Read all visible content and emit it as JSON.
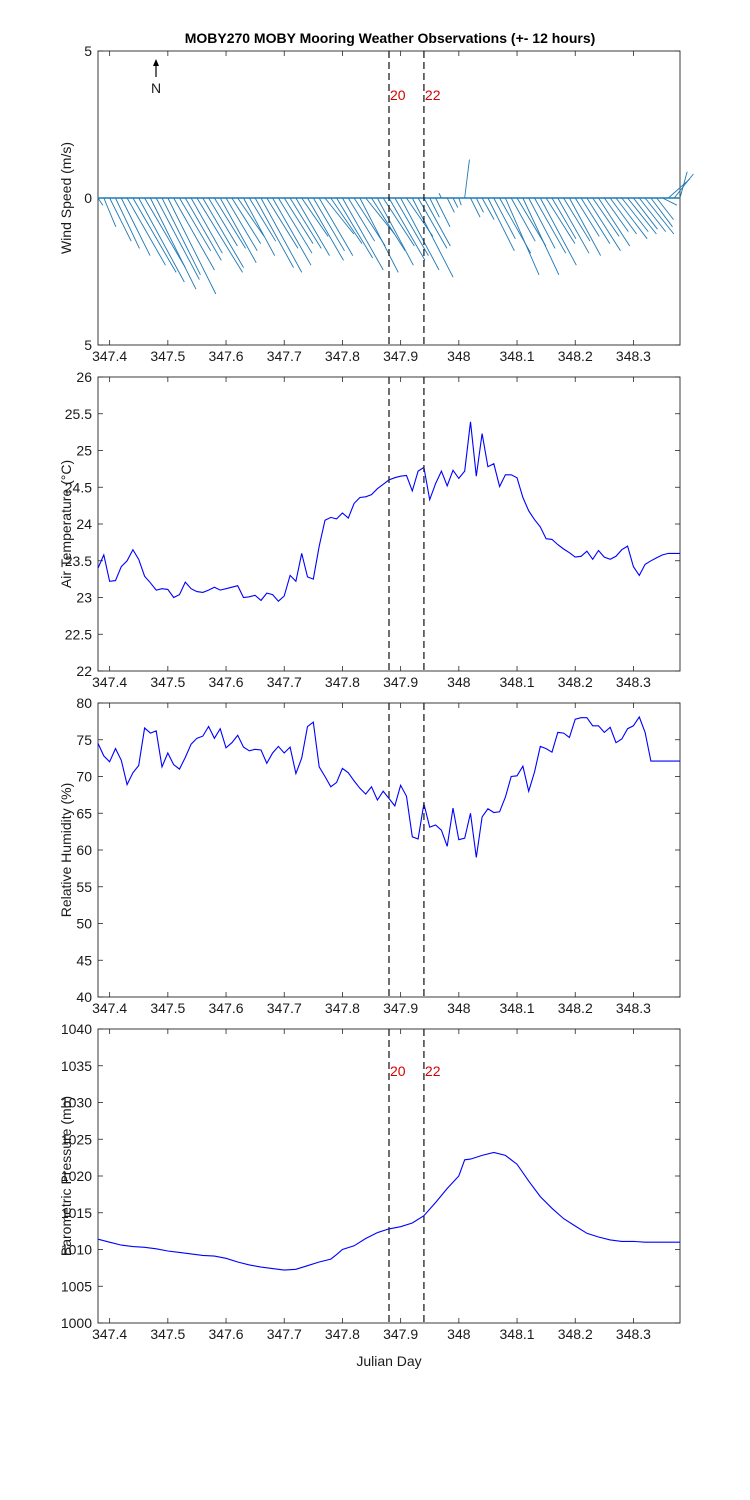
{
  "chart_data": [
    {
      "type": "quiver",
      "title": "MOBY270 MOBY Mooring Weather Observations (+- 12 hours)",
      "ylabel": "Wind Speed (m/s)",
      "xlabel": "",
      "xlim": [
        347.38,
        348.38
      ],
      "ylim": [
        -5,
        5
      ],
      "yticks": [
        5,
        0,
        5
      ],
      "xticks": [
        347.4,
        347.5,
        347.6,
        347.7,
        347.8,
        347.9,
        348,
        348.1,
        348.2,
        348.3
      ],
      "xtick_labels": [
        "347.4",
        "347.5",
        "347.6",
        "347.7",
        "347.8",
        "347.9",
        "348",
        "348.1",
        "348.2",
        "348.3"
      ],
      "north_label": "N",
      "color": "#1f78b4",
      "vlines": [
        {
          "x": 347.88,
          "label": "20"
        },
        {
          "x": 347.94,
          "label": "22"
        }
      ],
      "series": [
        {
          "x": [
            347.38,
            347.39,
            347.4,
            347.41,
            347.42,
            347.43,
            347.44,
            347.45,
            347.46,
            347.47,
            347.48,
            347.49,
            347.5,
            347.51,
            347.52,
            347.53,
            347.54,
            347.55,
            347.56,
            347.57,
            347.58,
            347.59,
            347.6,
            347.61,
            347.62,
            347.63,
            347.64,
            347.65,
            347.66,
            347.67,
            347.68,
            347.69,
            347.7,
            347.71,
            347.72,
            347.73,
            347.74,
            347.75,
            347.76,
            347.77,
            347.78,
            347.79,
            347.8,
            347.81,
            347.82,
            347.83,
            347.84,
            347.85,
            347.86,
            347.87,
            347.88,
            347.89,
            347.9,
            347.91,
            347.92,
            347.93,
            347.94,
            347.95,
            347.96,
            347.97,
            347.98,
            347.99,
            348.0,
            348.01,
            348.02,
            348.03,
            348.04,
            348.05,
            348.06,
            348.07,
            348.08,
            348.09,
            348.1,
            348.11,
            348.12,
            348.13,
            348.14,
            348.15,
            348.16,
            348.17,
            348.18,
            348.19,
            348.2,
            348.21,
            348.22,
            348.23,
            348.24,
            348.25,
            348.26,
            348.27,
            348.28,
            348.29,
            348.3,
            348.31,
            348.32,
            348.33,
            348.34,
            348.35,
            348.36,
            348.37,
            348.38
          ],
          "u": [
            0.2,
            0.5,
            0.9,
            1.0,
            1.2,
            1.6,
            1.8,
            1.9,
            1.7,
            1.9,
            1.8,
            1.6,
            2.0,
            1.7,
            1.3,
            1.5,
            1.3,
            1.9,
            1.7,
            1.2,
            1.3,
            1.5,
            1.3,
            1.2,
            1.1,
            1.3,
            1.1,
            1.6,
            1.7,
            1.3,
            1.6,
            1.4,
            1.2,
            1.3,
            1.4,
            1.1,
            1.5,
            1.3,
            1.4,
            1.2,
            1.3,
            1.5,
            1.7,
            1.1,
            1.3,
            1.6,
            1.2,
            1.4,
            1.5,
            1.3,
            1.5,
            1.4,
            1.6,
            1.1,
            1.7,
            1.2,
            1.1,
            0.4,
            0.6,
            -0.1,
            0.3,
            0.2,
            0.1,
            0.2,
            0.4,
            0.3,
            0.5,
            1.1,
            0.9,
            1.3,
            1.4,
            1.0,
            1.2,
            1.5,
            1.1,
            1.3,
            1.5,
            1.2,
            1.0,
            1.3,
            1.1,
            1.3,
            1.0,
            1.2,
            1.4,
            1.1,
            1.3,
            1.0,
            1.1,
            1.3,
            1.1,
            1.2,
            1.0,
            1.1,
            1.2,
            0.9,
            0.7,
            0.6,
            0.9,
            0.8,
            0.3
          ],
          "v": [
            -0.3,
            -1.2,
            -1.8,
            -2.1,
            -2.4,
            -2.8,
            -3.1,
            -3.5,
            -2.9,
            -3.8,
            -3.4,
            -3.2,
            -4.0,
            -3.0,
            -2.2,
            -2.6,
            -2.3,
            -3.1,
            -2.9,
            -2.0,
            -2.1,
            -2.7,
            -2.2,
            -1.9,
            -1.6,
            -2.4,
            -1.8,
            -2.9,
            -3.1,
            -2.1,
            -2.8,
            -2.3,
            -1.9,
            -2.1,
            -2.4,
            -1.6,
            -2.6,
            -2.2,
            -2.4,
            -1.5,
            -1.9,
            -2.5,
            -3.0,
            -1.8,
            -2.0,
            -3.1,
            -1.5,
            -2.2,
            -2.8,
            -2.0,
            -2.6,
            -2.4,
            -3.0,
            -1.6,
            -3.3,
            -2.1,
            -2.0,
            -0.8,
            -1.2,
            0.2,
            -0.6,
            -0.4,
            -0.3,
            1.6,
            -0.8,
            -0.6,
            -0.9,
            -2.2,
            -1.7,
            -2.3,
            -3.2,
            -1.8,
            -2.0,
            -3.2,
            -2.1,
            -2.3,
            -2.8,
            -1.9,
            -1.7,
            -2.3,
            -1.8,
            -2.4,
            -1.6,
            -1.9,
            -2.2,
            -1.6,
            -2.0,
            -1.4,
            -1.5,
            -1.7,
            -1.4,
            -1.5,
            -1.3,
            -1.4,
            -1.5,
            -1.2,
            -0.9,
            -0.3,
            0.8,
            1.0,
            1.1
          ]
        }
      ]
    },
    {
      "type": "line",
      "ylabel": "Air Temperature (°C)",
      "xlabel": "",
      "xlim": [
        347.38,
        348.38
      ],
      "ylim": [
        22,
        26
      ],
      "yticks": [
        22,
        22.5,
        23,
        23.5,
        24,
        24.5,
        25,
        25.5,
        26
      ],
      "ytick_labels": [
        "22",
        "22.5",
        "23",
        "23.5",
        "24",
        "24.5",
        "25",
        "25.5",
        "26"
      ],
      "xticks": [
        347.4,
        347.5,
        347.6,
        347.7,
        347.8,
        347.9,
        348,
        348.1,
        348.2,
        348.3
      ],
      "xtick_labels": [
        "347.4",
        "347.5",
        "347.6",
        "347.7",
        "347.8",
        "347.9",
        "348",
        "348.1",
        "348.2",
        "348.3"
      ],
      "color": "#0000ff",
      "vlines": [
        {
          "x": 347.88,
          "label": ""
        },
        {
          "x": 347.94,
          "label": ""
        }
      ],
      "series": [
        {
          "x": [
            347.38,
            347.39,
            347.4,
            347.41,
            347.42,
            347.43,
            347.44,
            347.45,
            347.46,
            347.47,
            347.48,
            347.49,
            347.5,
            347.51,
            347.52,
            347.53,
            347.54,
            347.55,
            347.56,
            347.57,
            347.58,
            347.59,
            347.6,
            347.61,
            347.62,
            347.63,
            347.64,
            347.65,
            347.66,
            347.67,
            347.68,
            347.69,
            347.7,
            347.71,
            347.72,
            347.73,
            347.74,
            347.75,
            347.76,
            347.77,
            347.78,
            347.79,
            347.8,
            347.81,
            347.82,
            347.83,
            347.84,
            347.85,
            347.86,
            347.87,
            347.88,
            347.89,
            347.9,
            347.91,
            347.92,
            347.93,
            347.94,
            347.95,
            347.96,
            347.97,
            347.98,
            347.99,
            348.0,
            348.01,
            348.02,
            348.03,
            348.04,
            348.05,
            348.06,
            348.07,
            348.08,
            348.09,
            348.1,
            348.11,
            348.12,
            348.13,
            348.14,
            348.15,
            348.16,
            348.17,
            348.18,
            348.19,
            348.2,
            348.21,
            348.22,
            348.23,
            348.24,
            348.25,
            348.26,
            348.27,
            348.28,
            348.29,
            348.3,
            348.31,
            348.32,
            348.33,
            348.34,
            348.35,
            348.36,
            348.37,
            348.38
          ],
          "y": [
            23.4,
            23.58,
            23.22,
            23.23,
            23.42,
            23.5,
            23.65,
            23.52,
            23.29,
            23.2,
            23.1,
            23.12,
            23.11,
            23.0,
            23.04,
            23.21,
            23.12,
            23.08,
            23.07,
            23.1,
            23.14,
            23.1,
            23.12,
            23.14,
            23.16,
            23.0,
            23.01,
            23.03,
            22.96,
            23.06,
            23.04,
            22.95,
            23.02,
            23.3,
            23.22,
            23.6,
            23.28,
            23.25,
            23.7,
            24.05,
            24.09,
            24.07,
            24.15,
            24.08,
            24.28,
            24.36,
            24.37,
            24.4,
            24.48,
            24.54,
            24.6,
            24.63,
            24.65,
            24.66,
            24.45,
            24.72,
            24.77,
            24.33,
            24.55,
            24.72,
            24.52,
            24.73,
            24.62,
            24.72,
            25.39,
            24.65,
            25.23,
            24.78,
            24.82,
            24.51,
            24.67,
            24.67,
            24.63,
            24.36,
            24.18,
            24.06,
            23.96,
            23.8,
            23.79,
            23.72,
            23.66,
            23.61,
            23.55,
            23.56,
            23.63,
            23.52,
            23.64,
            23.55,
            23.52,
            23.56,
            23.65,
            23.7,
            23.42,
            23.3,
            23.45,
            23.5,
            23.54,
            23.58,
            23.6,
            23.6,
            23.6
          ]
        }
      ]
    },
    {
      "type": "line",
      "ylabel": "Relative Humidity (%)",
      "xlabel": "",
      "xlim": [
        347.38,
        348.38
      ],
      "ylim": [
        40,
        80
      ],
      "yticks": [
        40,
        45,
        50,
        55,
        60,
        65,
        70,
        75,
        80
      ],
      "ytick_labels": [
        "40",
        "45",
        "50",
        "55",
        "60",
        "65",
        "70",
        "75",
        "80"
      ],
      "xticks": [
        347.4,
        347.5,
        347.6,
        347.7,
        347.8,
        347.9,
        348,
        348.1,
        348.2,
        348.3
      ],
      "xtick_labels": [
        "347.4",
        "347.5",
        "347.6",
        "347.7",
        "347.8",
        "347.9",
        "348",
        "348.1",
        "348.2",
        "348.3"
      ],
      "color": "#0000ff",
      "vlines": [
        {
          "x": 347.88,
          "label": ""
        },
        {
          "x": 347.94,
          "label": ""
        }
      ],
      "series": [
        {
          "x": [
            347.38,
            347.39,
            347.4,
            347.41,
            347.42,
            347.43,
            347.44,
            347.45,
            347.46,
            347.47,
            347.48,
            347.49,
            347.5,
            347.51,
            347.52,
            347.53,
            347.54,
            347.55,
            347.56,
            347.57,
            347.58,
            347.59,
            347.6,
            347.61,
            347.62,
            347.63,
            347.64,
            347.65,
            347.66,
            347.67,
            347.68,
            347.69,
            347.7,
            347.71,
            347.72,
            347.73,
            347.74,
            347.75,
            347.76,
            347.77,
            347.78,
            347.79,
            347.8,
            347.81,
            347.82,
            347.83,
            347.84,
            347.85,
            347.86,
            347.87,
            347.88,
            347.89,
            347.9,
            347.91,
            347.92,
            347.93,
            347.94,
            347.95,
            347.96,
            347.97,
            347.98,
            347.99,
            348.0,
            348.01,
            348.02,
            348.03,
            348.04,
            348.05,
            348.06,
            348.07,
            348.08,
            348.09,
            348.1,
            348.11,
            348.12,
            348.13,
            348.14,
            348.15,
            348.16,
            348.17,
            348.18,
            348.19,
            348.2,
            348.21,
            348.22,
            348.23,
            348.24,
            348.25,
            348.26,
            348.27,
            348.28,
            348.29,
            348.3,
            348.31,
            348.32,
            348.33,
            348.34,
            348.35,
            348.36,
            348.37,
            348.38
          ],
          "y": [
            74.5,
            72.8,
            72.0,
            73.8,
            72.2,
            68.9,
            70.5,
            71.5,
            76.6,
            75.9,
            76.2,
            71.3,
            73.2,
            71.6,
            71.0,
            72.6,
            74.4,
            75.2,
            75.5,
            76.8,
            75.2,
            76.5,
            73.9,
            74.6,
            75.6,
            74.0,
            73.5,
            73.7,
            73.6,
            71.8,
            73.2,
            74.1,
            73.2,
            74.0,
            70.4,
            72.5,
            76.8,
            77.4,
            71.3,
            70.0,
            68.6,
            69.2,
            71.1,
            70.5,
            69.4,
            68.4,
            67.6,
            68.6,
            66.8,
            68.0,
            67.0,
            66.0,
            68.8,
            67.3,
            61.8,
            61.5,
            66.3,
            63.1,
            63.4,
            62.7,
            60.5,
            65.7,
            61.4,
            61.6,
            65.0,
            59.0,
            64.5,
            65.6,
            65.1,
            65.2,
            67.2,
            70.0,
            70.1,
            71.4,
            68.0,
            70.6,
            74.1,
            73.8,
            73.3,
            76.0,
            75.9,
            75.3,
            77.8,
            78.0,
            78.0,
            76.9,
            76.9,
            76.0,
            76.7,
            74.6,
            75.1,
            76.5,
            76.9,
            78.1,
            76.0,
            72.1,
            72.1,
            72.1,
            72.1,
            72.1,
            72.1
          ]
        }
      ]
    },
    {
      "type": "line",
      "ylabel": "Barometric Pressure (mb)",
      "xlabel": "Julian Day",
      "xlim": [
        347.38,
        348.38
      ],
      "ylim": [
        1000,
        1040
      ],
      "yticks": [
        1000,
        1005,
        1010,
        1015,
        1020,
        1025,
        1030,
        1035,
        1040
      ],
      "ytick_labels": [
        "1000",
        "1005",
        "1010",
        "1015",
        "1020",
        "1025",
        "1030",
        "1035",
        "1040"
      ],
      "xticks": [
        347.4,
        347.5,
        347.6,
        347.7,
        347.8,
        347.9,
        348,
        348.1,
        348.2,
        348.3
      ],
      "xtick_labels": [
        "347.4",
        "347.5",
        "347.6",
        "347.7",
        "347.8",
        "347.9",
        "348",
        "348.1",
        "348.2",
        "348.3"
      ],
      "color": "#0000ff",
      "vlines": [
        {
          "x": 347.88,
          "label": "20"
        },
        {
          "x": 347.94,
          "label": "22"
        }
      ],
      "series": [
        {
          "x": [
            347.38,
            347.4,
            347.42,
            347.44,
            347.46,
            347.48,
            347.5,
            347.52,
            347.54,
            347.56,
            347.58,
            347.6,
            347.62,
            347.64,
            347.66,
            347.68,
            347.7,
            347.72,
            347.74,
            347.76,
            347.78,
            347.79,
            347.8,
            347.82,
            347.84,
            347.86,
            347.88,
            347.9,
            347.92,
            347.94,
            347.96,
            347.98,
            348.0,
            348.01,
            348.02,
            348.04,
            348.06,
            348.08,
            348.1,
            348.12,
            348.14,
            348.16,
            348.18,
            348.2,
            348.22,
            348.24,
            348.26,
            348.28,
            348.3,
            348.32,
            348.34,
            348.36,
            348.38
          ],
          "y": [
            1011.4,
            1011.0,
            1010.6,
            1010.4,
            1010.3,
            1010.1,
            1009.8,
            1009.6,
            1009.4,
            1009.2,
            1009.1,
            1008.8,
            1008.3,
            1007.9,
            1007.6,
            1007.4,
            1007.2,
            1007.3,
            1007.8,
            1008.3,
            1008.7,
            1009.3,
            1010.0,
            1010.5,
            1011.5,
            1012.3,
            1012.8,
            1013.1,
            1013.6,
            1014.6,
            1016.4,
            1018.3,
            1020.0,
            1022.2,
            1022.3,
            1022.8,
            1023.2,
            1022.8,
            1021.6,
            1019.3,
            1017.2,
            1015.6,
            1014.2,
            1013.2,
            1012.2,
            1011.7,
            1011.3,
            1011.1,
            1011.1,
            1011.0,
            1011.0,
            1011.0,
            1011.0
          ]
        }
      ]
    }
  ]
}
